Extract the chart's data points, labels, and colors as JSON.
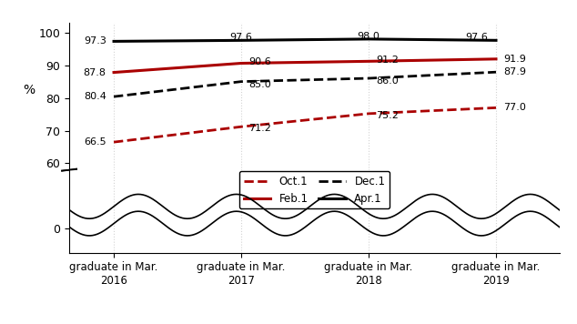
{
  "x": [
    0,
    1,
    2,
    3
  ],
  "x_labels": [
    "graduate in Mar.\n2016",
    "graduate in Mar.\n2017",
    "graduate in Mar.\n2018",
    "graduate in Mar.\n2019"
  ],
  "series": {
    "Oct.1": {
      "values": [
        66.5,
        71.2,
        75.2,
        77.0
      ],
      "color": "#aa0000",
      "linestyle": "dashed",
      "linewidth": 2.0
    },
    "Dec.1": {
      "values": [
        80.4,
        85.0,
        86.0,
        87.9
      ],
      "color": "#000000",
      "linestyle": "dashed",
      "linewidth": 2.0
    },
    "Feb.1": {
      "values": [
        87.8,
        90.6,
        91.2,
        91.9
      ],
      "color": "#aa0000",
      "linestyle": "solid",
      "linewidth": 2.2
    },
    "Apr.1": {
      "values": [
        97.3,
        97.6,
        98.0,
        97.6
      ],
      "color": "#000000",
      "linestyle": "solid",
      "linewidth": 2.2
    }
  },
  "background_color": "#ffffff",
  "xlim": [
    -0.35,
    3.5
  ],
  "ylim": [
    -8,
    106
  ],
  "yticks": [
    0,
    60,
    70,
    80,
    90,
    100
  ],
  "ylabel": "%"
}
